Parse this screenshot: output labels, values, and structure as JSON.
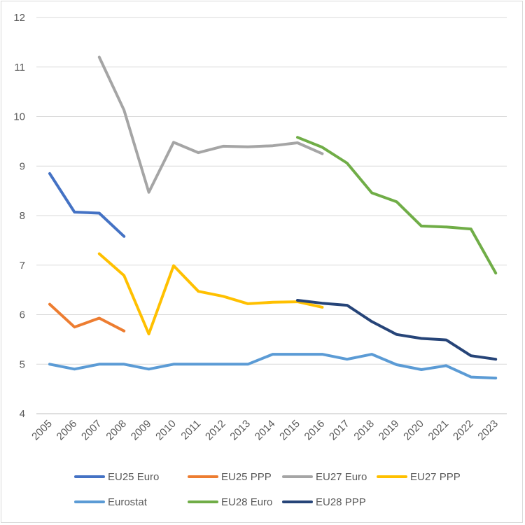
{
  "chart_data": {
    "type": "line",
    "title": "",
    "xlabel": "",
    "ylabel": "",
    "ylim": [
      4,
      12
    ],
    "yticks": [
      "4",
      "5",
      "6",
      "7",
      "8",
      "9",
      "10",
      "11",
      "12"
    ],
    "categories": [
      "2005",
      "2006",
      "2007",
      "2008",
      "2009",
      "2010",
      "2011",
      "2012",
      "2013",
      "2014",
      "2015",
      "2016",
      "2017",
      "2018",
      "2019",
      "2020",
      "2021",
      "2022",
      "2023"
    ],
    "grid": true,
    "legend_position": "bottom",
    "series": [
      {
        "name": "EU25 Euro",
        "color": "#4472C4",
        "values": [
          8.85,
          8.07,
          8.05,
          7.58,
          null,
          null,
          null,
          null,
          null,
          null,
          null,
          null,
          null,
          null,
          null,
          null,
          null,
          null,
          null
        ]
      },
      {
        "name": "EU25 PPP",
        "color": "#ED7D31",
        "values": [
          6.21,
          5.75,
          5.93,
          5.67,
          null,
          null,
          null,
          null,
          null,
          null,
          null,
          null,
          null,
          null,
          null,
          null,
          null,
          null,
          null
        ]
      },
      {
        "name": "EU27 Euro",
        "color": "#A5A5A5",
        "values": [
          null,
          null,
          11.2,
          10.13,
          8.47,
          9.48,
          9.27,
          9.4,
          9.39,
          9.41,
          9.47,
          9.25,
          null,
          null,
          null,
          null,
          null,
          null,
          null
        ]
      },
      {
        "name": "EU27 PPP",
        "color": "#FFC000",
        "values": [
          null,
          null,
          7.23,
          6.79,
          5.61,
          6.99,
          6.47,
          6.37,
          6.22,
          6.25,
          6.26,
          6.15,
          null,
          null,
          null,
          null,
          null,
          null,
          null
        ]
      },
      {
        "name": "Eurostat",
        "color": "#5B9BD5",
        "values": [
          5.0,
          4.9,
          5.0,
          5.0,
          4.9,
          5.0,
          5.0,
          5.0,
          5.0,
          5.2,
          5.2,
          5.2,
          5.1,
          5.2,
          4.99,
          4.89,
          4.97,
          4.74,
          4.72
        ]
      },
      {
        "name": "EU28 Euro",
        "color": "#70AD47",
        "values": [
          null,
          null,
          null,
          null,
          null,
          null,
          null,
          null,
          null,
          null,
          9.58,
          9.38,
          9.06,
          8.46,
          8.28,
          7.79,
          7.77,
          7.73,
          6.84
        ]
      },
      {
        "name": "EU28 PPP",
        "color": "#264478",
        "values": [
          null,
          null,
          null,
          null,
          null,
          null,
          null,
          null,
          null,
          null,
          6.29,
          6.23,
          6.19,
          5.86,
          5.6,
          5.52,
          5.49,
          5.17,
          5.1
        ]
      }
    ]
  }
}
